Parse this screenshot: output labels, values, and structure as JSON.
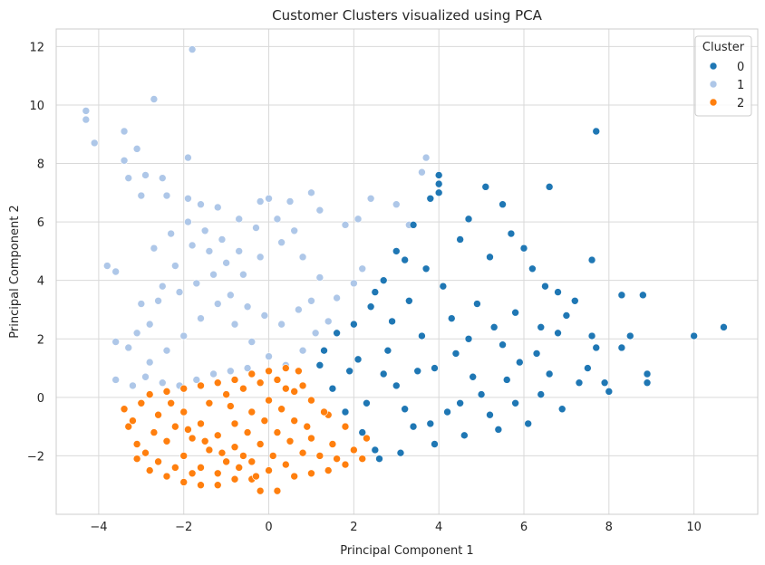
{
  "chart_data": {
    "type": "scatter",
    "title": "Customer Clusters visualized using PCA",
    "xlabel": "Principal Component 1",
    "ylabel": "Principal Component 2",
    "xlim": [
      -5,
      11.5
    ],
    "ylim": [
      -4,
      12.6
    ],
    "xticks": [
      -4,
      -2,
      0,
      2,
      4,
      6,
      8,
      10
    ],
    "yticks": [
      -2,
      0,
      2,
      4,
      6,
      8,
      10,
      12
    ],
    "grid": true,
    "legend": {
      "title": "Cluster",
      "placement": "top-right"
    },
    "series": [
      {
        "name": "0",
        "color": "#1f77b4",
        "points": [
          [
            1.2,
            1.1
          ],
          [
            1.5,
            0.3
          ],
          [
            1.8,
            -0.5
          ],
          [
            2.2,
            -1.2
          ],
          [
            2.5,
            -1.8
          ],
          [
            2.0,
            2.5
          ],
          [
            2.4,
            3.1
          ],
          [
            2.7,
            4.0
          ],
          [
            3.0,
            5.0
          ],
          [
            3.4,
            5.9
          ],
          [
            3.8,
            6.8
          ],
          [
            4.0,
            7.6
          ],
          [
            4.0,
            7.0
          ],
          [
            4.0,
            7.3
          ],
          [
            5.1,
            7.2
          ],
          [
            5.5,
            6.6
          ],
          [
            6.6,
            7.2
          ],
          [
            7.7,
            9.1
          ],
          [
            7.6,
            4.7
          ],
          [
            8.3,
            3.5
          ],
          [
            8.8,
            3.5
          ],
          [
            7.6,
            2.1
          ],
          [
            8.5,
            2.1
          ],
          [
            8.3,
            1.7
          ],
          [
            7.9,
            0.5
          ],
          [
            8.0,
            0.2
          ],
          [
            8.9,
            0.5
          ],
          [
            8.9,
            0.8
          ],
          [
            10.0,
            2.1
          ],
          [
            10.7,
            2.4
          ],
          [
            6.5,
            3.8
          ],
          [
            6.0,
            5.1
          ],
          [
            5.7,
            5.6
          ],
          [
            4.7,
            6.1
          ],
          [
            4.5,
            5.4
          ],
          [
            5.2,
            4.8
          ],
          [
            6.2,
            4.4
          ],
          [
            6.8,
            3.6
          ],
          [
            7.2,
            3.3
          ],
          [
            7.0,
            2.8
          ],
          [
            6.4,
            2.4
          ],
          [
            5.9,
            1.2
          ],
          [
            6.6,
            0.8
          ],
          [
            7.3,
            0.5
          ],
          [
            6.9,
            -0.4
          ],
          [
            6.1,
            -0.9
          ],
          [
            5.4,
            -1.1
          ],
          [
            4.6,
            -1.3
          ],
          [
            3.9,
            -1.6
          ],
          [
            3.1,
            -1.9
          ],
          [
            2.6,
            -2.1
          ],
          [
            3.4,
            -1.0
          ],
          [
            4.2,
            -0.5
          ],
          [
            5.0,
            0.1
          ],
          [
            5.6,
            0.6
          ],
          [
            4.4,
            1.5
          ],
          [
            3.6,
            2.1
          ],
          [
            2.9,
            2.6
          ],
          [
            3.3,
            3.3
          ],
          [
            4.1,
            3.8
          ],
          [
            4.9,
            3.2
          ],
          [
            5.3,
            2.4
          ],
          [
            4.7,
            2.0
          ],
          [
            3.9,
            1.0
          ],
          [
            3.0,
            0.4
          ],
          [
            2.3,
            -0.2
          ],
          [
            1.9,
            0.9
          ],
          [
            2.8,
            1.6
          ],
          [
            3.5,
            0.9
          ],
          [
            4.8,
            0.7
          ],
          [
            5.5,
            1.8
          ],
          [
            6.3,
            1.5
          ],
          [
            7.5,
            1.0
          ],
          [
            7.7,
            1.7
          ],
          [
            6.8,
            2.2
          ],
          [
            5.8,
            2.9
          ],
          [
            4.3,
            2.7
          ],
          [
            3.7,
            4.4
          ],
          [
            3.2,
            4.7
          ],
          [
            2.5,
            3.6
          ],
          [
            1.6,
            2.2
          ],
          [
            1.3,
            1.6
          ],
          [
            2.1,
            1.3
          ],
          [
            2.7,
            0.8
          ],
          [
            3.2,
            -0.4
          ],
          [
            3.8,
            -0.9
          ],
          [
            4.5,
            -0.2
          ],
          [
            5.2,
            -0.6
          ],
          [
            5.8,
            -0.2
          ],
          [
            6.4,
            0.1
          ]
        ]
      },
      {
        "name": "1",
        "color": "#aec7e8",
        "points": [
          [
            -4.3,
            9.8
          ],
          [
            -4.3,
            9.5
          ],
          [
            -4.1,
            8.7
          ],
          [
            -3.4,
            9.1
          ],
          [
            -3.4,
            8.1
          ],
          [
            -3.1,
            8.5
          ],
          [
            -2.7,
            10.2
          ],
          [
            -1.8,
            11.9
          ],
          [
            -1.9,
            8.2
          ],
          [
            -2.9,
            7.6
          ],
          [
            -2.5,
            7.5
          ],
          [
            -3.3,
            7.5
          ],
          [
            -3.0,
            6.9
          ],
          [
            -2.4,
            6.9
          ],
          [
            -1.9,
            6.8
          ],
          [
            -1.6,
            6.6
          ],
          [
            -1.2,
            6.5
          ],
          [
            -0.7,
            6.1
          ],
          [
            -0.2,
            6.7
          ],
          [
            0.0,
            6.8
          ],
          [
            0.5,
            6.7
          ],
          [
            1.0,
            7.0
          ],
          [
            1.2,
            6.4
          ],
          [
            1.8,
            5.9
          ],
          [
            2.1,
            6.1
          ],
          [
            2.4,
            6.8
          ],
          [
            3.0,
            6.6
          ],
          [
            3.3,
            5.9
          ],
          [
            3.6,
            7.7
          ],
          [
            3.7,
            8.2
          ],
          [
            -3.8,
            4.5
          ],
          [
            -3.6,
            4.3
          ],
          [
            -3.6,
            0.6
          ],
          [
            -3.3,
            1.7
          ],
          [
            -3.6,
            1.9
          ],
          [
            -3.0,
            3.2
          ],
          [
            -2.8,
            2.5
          ],
          [
            -2.5,
            3.8
          ],
          [
            -2.2,
            4.5
          ],
          [
            -1.8,
            5.2
          ],
          [
            -1.4,
            5.0
          ],
          [
            -1.0,
            4.6
          ],
          [
            -0.6,
            4.2
          ],
          [
            -0.2,
            4.8
          ],
          [
            0.3,
            5.3
          ],
          [
            0.8,
            4.8
          ],
          [
            1.2,
            4.1
          ],
          [
            1.6,
            3.4
          ],
          [
            2.0,
            3.9
          ],
          [
            2.2,
            4.4
          ],
          [
            -2.8,
            1.2
          ],
          [
            -2.4,
            1.6
          ],
          [
            -2.0,
            2.1
          ],
          [
            -1.6,
            2.7
          ],
          [
            -1.2,
            3.2
          ],
          [
            -0.8,
            2.5
          ],
          [
            -0.4,
            1.9
          ],
          [
            0.0,
            1.4
          ],
          [
            0.4,
            1.1
          ],
          [
            0.8,
            1.6
          ],
          [
            1.1,
            2.2
          ],
          [
            1.4,
            2.6
          ],
          [
            -3.2,
            0.4
          ],
          [
            -2.9,
            0.7
          ],
          [
            -2.5,
            0.5
          ],
          [
            -2.1,
            0.4
          ],
          [
            -1.7,
            0.6
          ],
          [
            -1.3,
            0.8
          ],
          [
            -0.9,
            0.9
          ],
          [
            -0.5,
            1.0
          ],
          [
            -2.6,
            3.3
          ],
          [
            -2.1,
            3.6
          ],
          [
            -1.7,
            3.9
          ],
          [
            -1.3,
            4.2
          ],
          [
            -0.9,
            3.5
          ],
          [
            -0.5,
            3.1
          ],
          [
            -0.1,
            2.8
          ],
          [
            0.3,
            2.5
          ],
          [
            0.7,
            3.0
          ],
          [
            1.0,
            3.3
          ],
          [
            -3.1,
            2.2
          ],
          [
            -2.7,
            5.1
          ],
          [
            -2.3,
            5.6
          ],
          [
            -1.9,
            6.0
          ],
          [
            -1.5,
            5.7
          ],
          [
            -1.1,
            5.4
          ],
          [
            -0.7,
            5.0
          ],
          [
            -0.3,
            5.8
          ],
          [
            0.2,
            6.1
          ],
          [
            0.6,
            5.7
          ]
        ]
      },
      {
        "name": "2",
        "color": "#ff7f0e",
        "points": [
          [
            -3.4,
            -0.4
          ],
          [
            -3.3,
            -1.0
          ],
          [
            -3.1,
            -1.6
          ],
          [
            -3.1,
            -2.1
          ],
          [
            -2.8,
            -2.5
          ],
          [
            -2.4,
            -2.7
          ],
          [
            -2.0,
            -2.9
          ],
          [
            -1.6,
            -3.0
          ],
          [
            -1.2,
            -3.0
          ],
          [
            -0.8,
            -2.8
          ],
          [
            -0.4,
            -2.8
          ],
          [
            -0.2,
            -3.2
          ],
          [
            0.2,
            -3.2
          ],
          [
            0.6,
            -2.7
          ],
          [
            1.0,
            -2.6
          ],
          [
            1.4,
            -2.5
          ],
          [
            1.8,
            -2.3
          ],
          [
            2.2,
            -2.1
          ],
          [
            2.3,
            -1.4
          ],
          [
            1.8,
            -1.0
          ],
          [
            1.4,
            -0.6
          ],
          [
            1.0,
            -0.1
          ],
          [
            0.8,
            0.4
          ],
          [
            0.7,
            0.9
          ],
          [
            0.4,
            1.0
          ],
          [
            0.0,
            0.9
          ],
          [
            -0.4,
            0.8
          ],
          [
            -0.8,
            0.6
          ],
          [
            -1.2,
            0.5
          ],
          [
            -1.6,
            0.4
          ],
          [
            -2.0,
            0.3
          ],
          [
            -2.4,
            0.2
          ],
          [
            -2.8,
            0.1
          ],
          [
            -3.0,
            -0.2
          ],
          [
            -2.6,
            -0.6
          ],
          [
            -2.2,
            -1.0
          ],
          [
            -1.8,
            -1.4
          ],
          [
            -1.4,
            -1.8
          ],
          [
            -1.0,
            -2.2
          ],
          [
            -0.6,
            -2.0
          ],
          [
            -0.2,
            -1.6
          ],
          [
            0.2,
            -1.2
          ],
          [
            0.6,
            -0.8
          ],
          [
            1.0,
            -1.4
          ],
          [
            0.8,
            -1.9
          ],
          [
            0.4,
            -2.3
          ],
          [
            0.0,
            -2.5
          ],
          [
            -0.4,
            -2.2
          ],
          [
            -0.8,
            -1.7
          ],
          [
            -1.2,
            -1.3
          ],
          [
            -1.6,
            -0.9
          ],
          [
            -2.0,
            -0.5
          ],
          [
            -2.4,
            -1.5
          ],
          [
            -2.0,
            -2.0
          ],
          [
            -1.6,
            -2.4
          ],
          [
            -1.2,
            -2.6
          ],
          [
            -0.8,
            -0.9
          ],
          [
            -0.4,
            -0.5
          ],
          [
            0.0,
            -0.1
          ],
          [
            0.4,
            0.3
          ],
          [
            -2.9,
            -1.9
          ],
          [
            -2.6,
            -2.2
          ],
          [
            -2.2,
            -2.4
          ],
          [
            -1.8,
            -2.6
          ],
          [
            -1.4,
            -0.2
          ],
          [
            -1.0,
            0.1
          ],
          [
            -0.6,
            0.3
          ],
          [
            -0.2,
            0.5
          ],
          [
            0.2,
            0.6
          ],
          [
            0.6,
            0.2
          ],
          [
            1.2,
            -2.0
          ],
          [
            1.5,
            -1.6
          ],
          [
            1.6,
            -2.1
          ],
          [
            2.0,
            -1.8
          ],
          [
            -3.2,
            -0.8
          ],
          [
            -2.7,
            -1.2
          ],
          [
            -2.3,
            -0.2
          ],
          [
            -1.9,
            -1.1
          ],
          [
            -1.5,
            -1.5
          ],
          [
            -1.1,
            -1.9
          ],
          [
            -0.7,
            -2.4
          ],
          [
            -0.3,
            -2.7
          ],
          [
            0.1,
            -2.0
          ],
          [
            0.5,
            -1.5
          ],
          [
            0.9,
            -1.0
          ],
          [
            1.3,
            -0.5
          ],
          [
            -0.5,
            -1.2
          ],
          [
            -0.1,
            -0.8
          ],
          [
            0.3,
            -0.4
          ],
          [
            -0.9,
            -0.3
          ]
        ]
      }
    ]
  }
}
